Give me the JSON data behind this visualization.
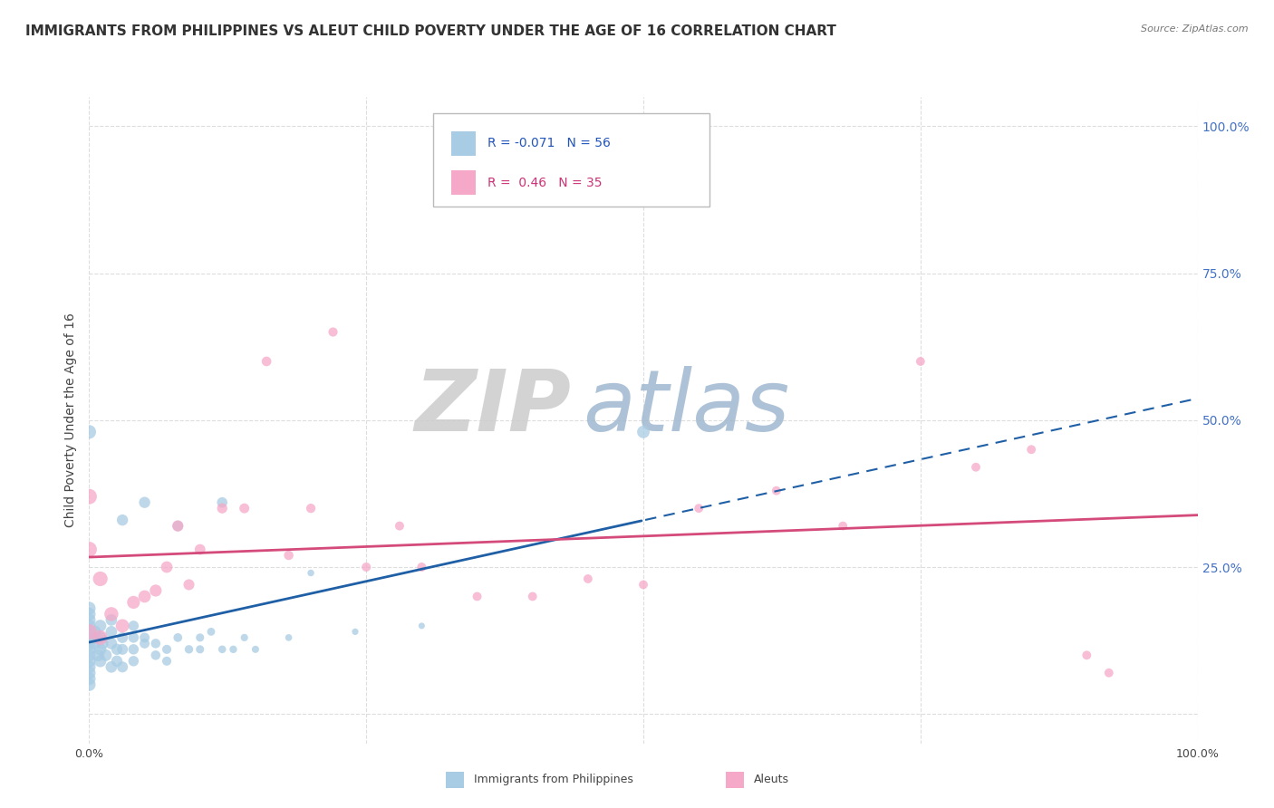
{
  "title": "IMMIGRANTS FROM PHILIPPINES VS ALEUT CHILD POVERTY UNDER THE AGE OF 16 CORRELATION CHART",
  "source": "Source: ZipAtlas.com",
  "ylabel": "Child Poverty Under the Age of 16",
  "xlim": [
    0.0,
    1.0
  ],
  "ylim": [
    -0.05,
    1.05
  ],
  "plot_ylim": [
    -0.05,
    1.05
  ],
  "xticks": [
    0.0,
    0.25,
    0.5,
    0.75,
    1.0
  ],
  "xticklabels": [
    "0.0%",
    "",
    "",
    "",
    "100.0%"
  ],
  "yticks": [
    0.0,
    0.25,
    0.5,
    0.75,
    1.0
  ],
  "right_yticklabels": [
    "",
    "25.0%",
    "50.0%",
    "75.0%",
    "100.0%"
  ],
  "watermark_zip": "ZIP",
  "watermark_atlas": "atlas",
  "series1_color": "#a8cce4",
  "series1_line_color": "#1f5fa6",
  "series2_color": "#f5a8c8",
  "series2_line_color": "#d44a7a",
  "series1_label": "Immigrants from Philippines",
  "series2_label": "Aleuts",
  "series1_R": -0.071,
  "series1_N": 56,
  "series2_R": 0.46,
  "series2_N": 35,
  "series1_x": [
    0.0,
    0.0,
    0.0,
    0.0,
    0.0,
    0.0,
    0.0,
    0.0,
    0.0,
    0.0,
    0.0,
    0.0,
    0.0,
    0.0,
    0.005,
    0.005,
    0.005,
    0.008,
    0.01,
    0.01,
    0.01,
    0.01,
    0.012,
    0.015,
    0.02,
    0.02,
    0.02,
    0.02,
    0.025,
    0.025,
    0.03,
    0.03,
    0.03,
    0.04,
    0.04,
    0.04,
    0.04,
    0.05,
    0.05,
    0.06,
    0.06,
    0.07,
    0.07,
    0.08,
    0.09,
    0.1,
    0.1,
    0.11,
    0.12,
    0.13,
    0.14,
    0.15,
    0.18,
    0.2,
    0.24,
    0.3
  ],
  "series1_y": [
    0.15,
    0.16,
    0.17,
    0.18,
    0.13,
    0.14,
    0.12,
    0.11,
    0.1,
    0.09,
    0.08,
    0.07,
    0.06,
    0.05,
    0.14,
    0.13,
    0.12,
    0.1,
    0.15,
    0.13,
    0.11,
    0.09,
    0.12,
    0.1,
    0.16,
    0.14,
    0.12,
    0.08,
    0.11,
    0.09,
    0.13,
    0.11,
    0.08,
    0.15,
    0.13,
    0.11,
    0.09,
    0.13,
    0.12,
    0.12,
    0.1,
    0.11,
    0.09,
    0.13,
    0.11,
    0.13,
    0.11,
    0.14,
    0.11,
    0.11,
    0.13,
    0.11,
    0.13,
    0.24,
    0.14,
    0.15
  ],
  "series1_outliers_x": [
    0.0,
    0.03,
    0.05,
    0.08,
    0.12,
    0.5
  ],
  "series1_outliers_y": [
    0.48,
    0.33,
    0.36,
    0.32,
    0.36,
    0.48
  ],
  "series2_x": [
    0.0,
    0.0,
    0.0,
    0.01,
    0.01,
    0.02,
    0.03,
    0.04,
    0.05,
    0.06,
    0.07,
    0.08,
    0.09,
    0.1,
    0.12,
    0.14,
    0.16,
    0.18,
    0.2,
    0.22,
    0.25,
    0.28,
    0.3,
    0.35,
    0.4,
    0.45,
    0.5,
    0.55,
    0.62,
    0.68,
    0.75,
    0.8,
    0.85,
    0.9,
    0.92
  ],
  "series2_y": [
    0.14,
    0.28,
    0.37,
    0.23,
    0.13,
    0.17,
    0.15,
    0.19,
    0.2,
    0.21,
    0.25,
    0.32,
    0.22,
    0.28,
    0.35,
    0.35,
    0.6,
    0.27,
    0.35,
    0.65,
    0.25,
    0.32,
    0.25,
    0.2,
    0.2,
    0.23,
    0.22,
    0.35,
    0.38,
    0.32,
    0.6,
    0.42,
    0.45,
    0.1,
    0.07
  ],
  "background_color": "#ffffff",
  "grid_color": "#dddddd",
  "title_fontsize": 11,
  "axis_fontsize": 9,
  "legend_fontsize": 10,
  "right_label_color": "#4472c4"
}
